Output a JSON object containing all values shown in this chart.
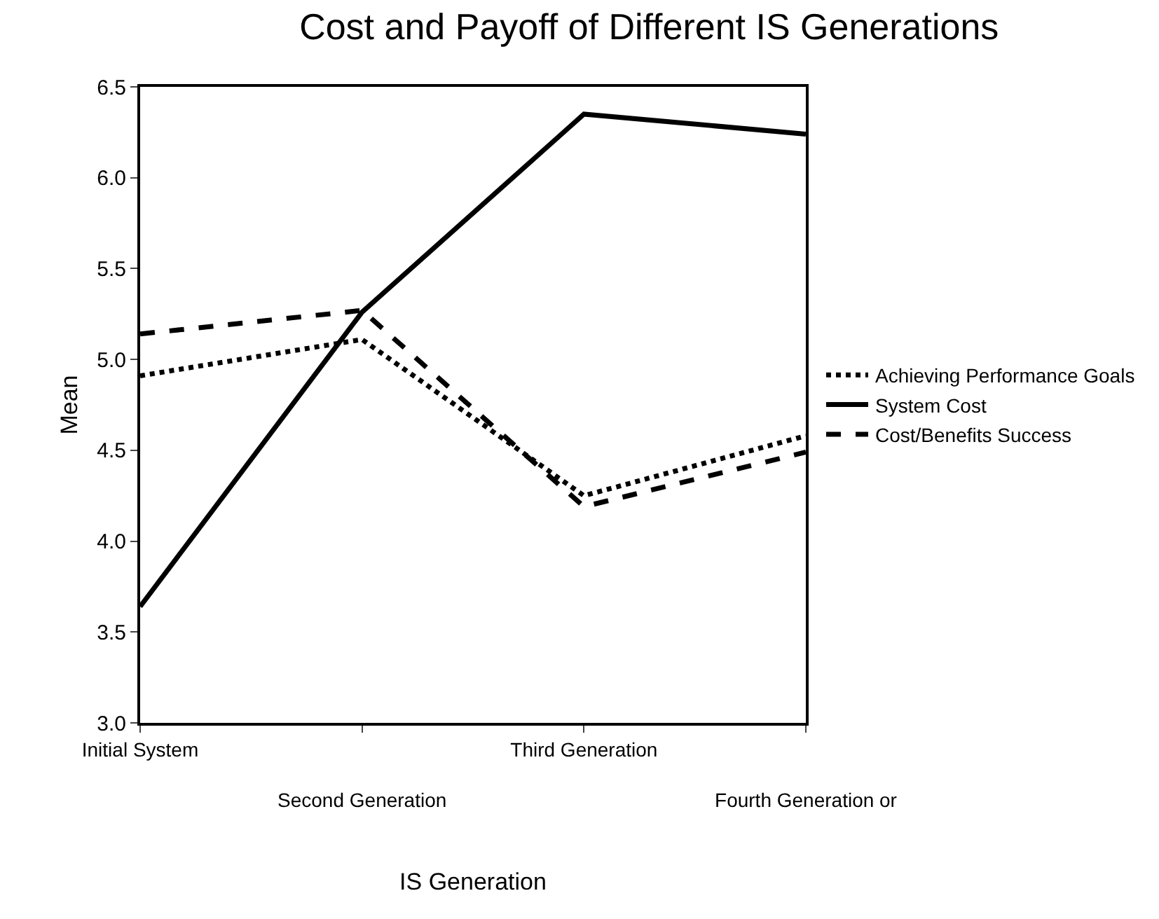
{
  "chart_data": {
    "type": "line",
    "title": "Cost and Payoff of Different IS Generations",
    "xlabel": "IS Generation",
    "ylabel": "Mean",
    "categories": [
      "Initial System",
      "Second Generation",
      "Third Generation",
      "Fourth Generation or"
    ],
    "series": [
      {
        "name": "Achieving Performance Goals",
        "color": "#000000",
        "line_style": "dotted",
        "values": [
          4.91,
          5.11,
          4.25,
          4.58
        ]
      },
      {
        "name": "System Cost",
        "color": "#000000",
        "line_style": "solid",
        "values": [
          3.64,
          5.26,
          6.35,
          6.24
        ]
      },
      {
        "name": "Cost/Benefits Success",
        "color": "#000000",
        "line_style": "dashed",
        "values": [
          5.14,
          5.27,
          4.19,
          4.49
        ]
      }
    ],
    "ylim": [
      3.0,
      6.5
    ],
    "yticks": [
      {
        "value": 3.0,
        "label": "3.0"
      },
      {
        "value": 3.5,
        "label": "3.5"
      },
      {
        "value": 4.0,
        "label": "4.0"
      },
      {
        "value": 4.5,
        "label": "4.5"
      },
      {
        "value": 5.0,
        "label": "5.0"
      },
      {
        "value": 5.5,
        "label": "5.5"
      },
      {
        "value": 6.0,
        "label": "6.0"
      },
      {
        "value": 6.5,
        "label": "6.5"
      }
    ],
    "grid": false,
    "legend": "right",
    "marker": "none"
  }
}
